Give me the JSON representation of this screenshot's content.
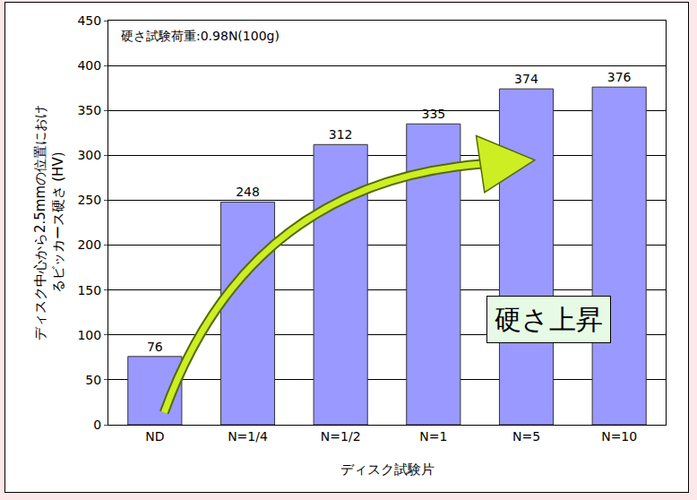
{
  "chart_data": {
    "type": "bar",
    "categories": [
      "ND",
      "N=1/4",
      "N=1/2",
      "N=1",
      "N=5",
      "N=10"
    ],
    "values": [
      76,
      248,
      312,
      335,
      374,
      376
    ],
    "color": "#9999ff",
    "ylim": [
      0,
      450
    ],
    "yticks": [
      0,
      50,
      100,
      150,
      200,
      250,
      300,
      350,
      400,
      450
    ],
    "grid": true,
    "data_labels": true,
    "x_label": "ディスク試験片",
    "y_label": "ディスク中心から2.5mmの位置におけるビッカース硬さ (HV)",
    "annotations": [
      "硬さ試験荷重:0.98N(100g)",
      "硬さ上昇"
    ]
  }
}
